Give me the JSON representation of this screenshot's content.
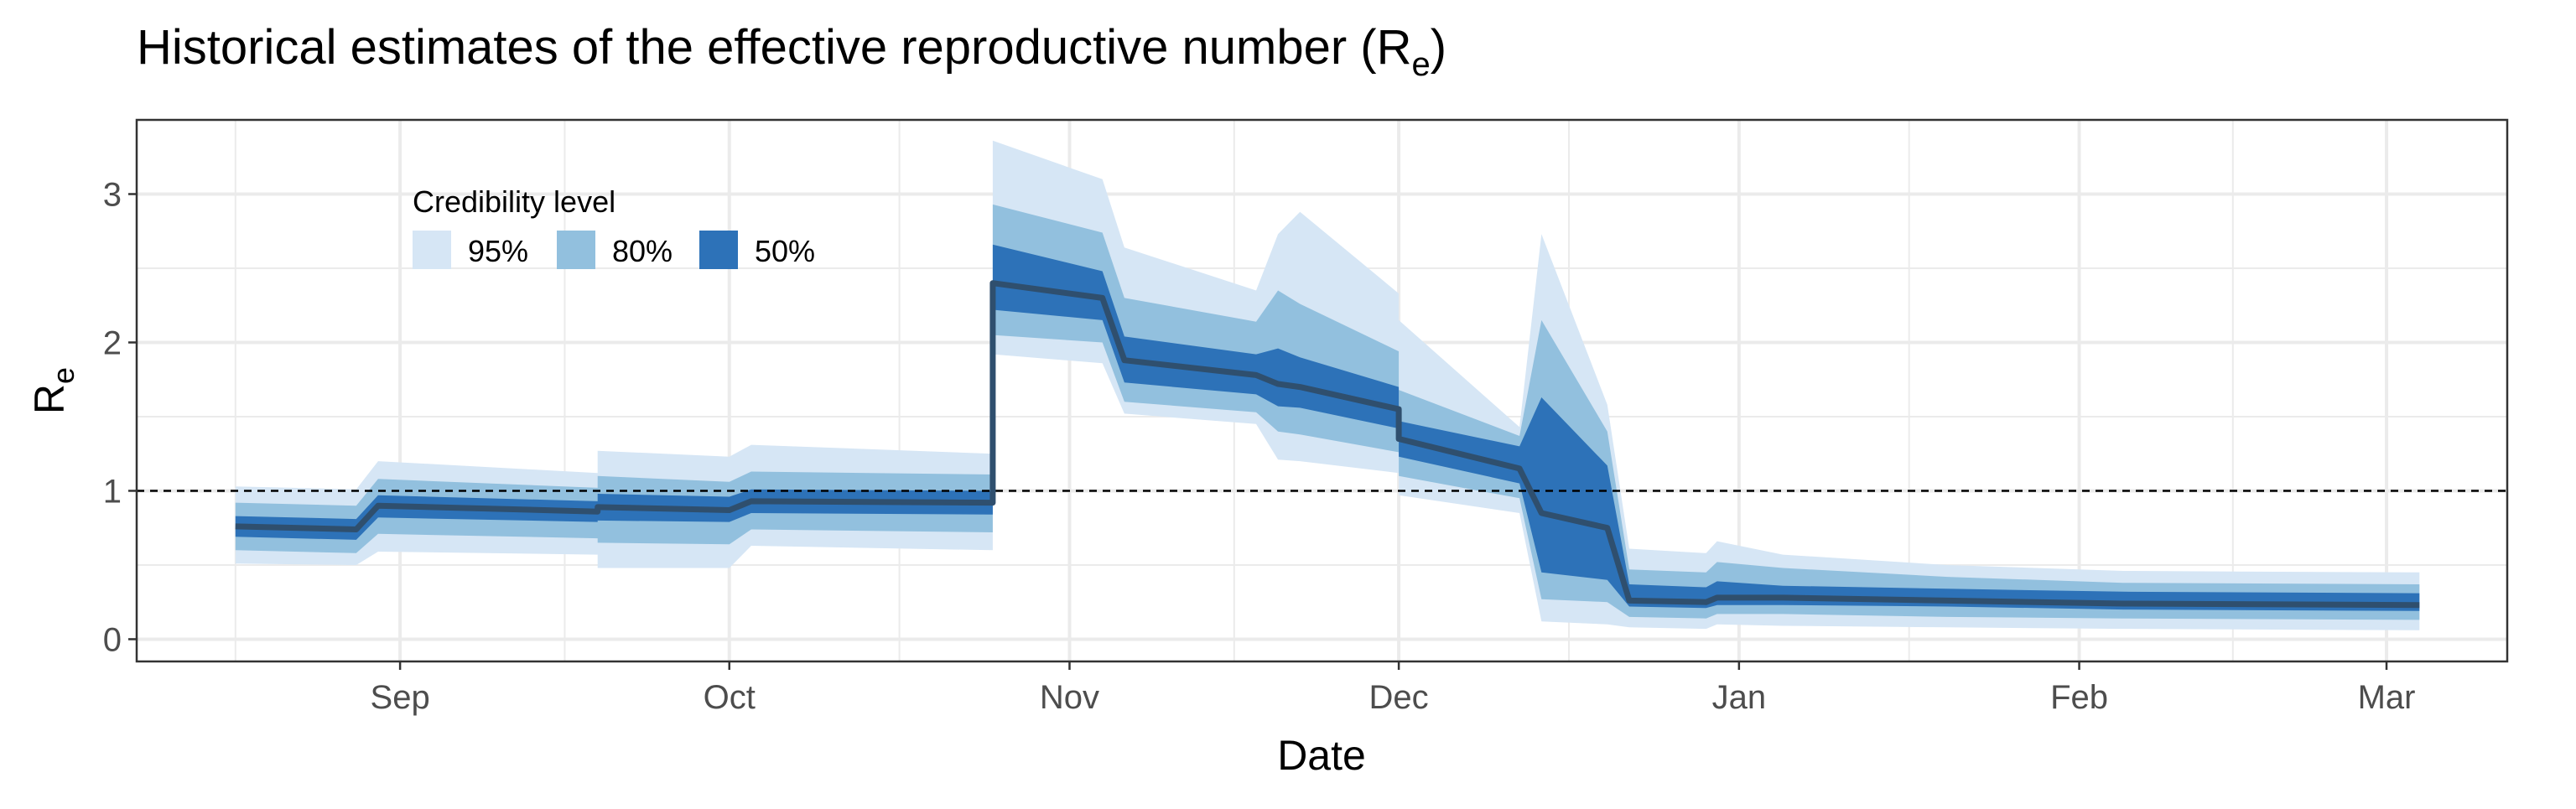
{
  "title": {
    "main": "Historical estimates of the effective reproductive number (R",
    "sub": "e",
    "close": ")"
  },
  "axes": {
    "xlabel": "Date",
    "ylabel_main": "R",
    "ylabel_sub": "e"
  },
  "legend": {
    "title": "Credibility level",
    "items": [
      {
        "label": "95%",
        "color": "#d6e6f5"
      },
      {
        "label": "80%",
        "color": "#92c0de"
      },
      {
        "label": "50%",
        "color": "#2d72b8"
      }
    ]
  },
  "colors": {
    "median_line": "#2f4f6e",
    "reference_line": "#000000",
    "grid": "#ebebeb",
    "panel_border": "#333333"
  },
  "chart_data": {
    "type": "area",
    "x_axis": {
      "type": "date",
      "range": [
        "2020-08-08",
        "2021-03-12"
      ],
      "ticks": [
        {
          "date": "2020-09-01",
          "label": "Sep"
        },
        {
          "date": "2020-10-01",
          "label": "Oct"
        },
        {
          "date": "2020-11-01",
          "label": "Nov"
        },
        {
          "date": "2020-12-01",
          "label": "Dec"
        },
        {
          "date": "2021-01-01",
          "label": "Jan"
        },
        {
          "date": "2021-02-01",
          "label": "Feb"
        },
        {
          "date": "2021-03-01",
          "label": "Mar"
        }
      ]
    },
    "y_axis": {
      "range": [
        -0.15,
        3.5
      ],
      "ticks": [
        0,
        1,
        2,
        3
      ]
    },
    "grid": true,
    "reference_line_y": 1,
    "series": {
      "x": [
        "2020-08-17",
        "2020-08-28",
        "2020-08-30",
        "2020-09-19",
        "2020-09-19",
        "2020-10-01",
        "2020-10-03",
        "2020-10-25",
        "2020-10-25",
        "2020-11-04",
        "2020-11-06",
        "2020-11-18",
        "2020-11-20",
        "2020-11-22",
        "2020-12-01",
        "2020-12-01",
        "2020-12-12",
        "2020-12-14",
        "2020-12-20",
        "2020-12-22",
        "2020-12-29",
        "2020-12-30",
        "2021-01-05",
        "2021-01-20",
        "2021-02-05",
        "2021-03-04"
      ],
      "median": [
        0.76,
        0.74,
        0.9,
        0.86,
        0.89,
        0.87,
        0.93,
        0.92,
        2.4,
        2.3,
        1.88,
        1.78,
        1.72,
        1.7,
        1.55,
        1.35,
        1.15,
        0.85,
        0.75,
        0.26,
        0.25,
        0.28,
        0.28,
        0.26,
        0.24,
        0.23
      ],
      "ci50_low": [
        0.69,
        0.67,
        0.82,
        0.79,
        0.8,
        0.79,
        0.85,
        0.84,
        2.22,
        2.15,
        1.73,
        1.65,
        1.57,
        1.56,
        1.42,
        1.23,
        1.05,
        0.45,
        0.4,
        0.22,
        0.21,
        0.23,
        0.23,
        0.22,
        0.2,
        0.19
      ],
      "ci50_high": [
        0.83,
        0.81,
        0.97,
        0.93,
        0.98,
        0.96,
        1.01,
        1.0,
        2.66,
        2.48,
        2.04,
        1.92,
        1.96,
        1.9,
        1.7,
        1.47,
        1.3,
        1.63,
        1.17,
        0.37,
        0.35,
        0.39,
        0.36,
        0.34,
        0.32,
        0.31
      ],
      "ci80_low": [
        0.6,
        0.58,
        0.71,
        0.68,
        0.65,
        0.64,
        0.74,
        0.72,
        2.05,
        2.0,
        1.6,
        1.53,
        1.4,
        1.38,
        1.26,
        1.1,
        0.95,
        0.27,
        0.25,
        0.15,
        0.14,
        0.17,
        0.17,
        0.15,
        0.14,
        0.13
      ],
      "ci80_high": [
        0.92,
        0.9,
        1.08,
        1.02,
        1.1,
        1.06,
        1.13,
        1.11,
        2.93,
        2.74,
        2.3,
        2.14,
        2.35,
        2.26,
        1.94,
        1.68,
        1.37,
        2.15,
        1.4,
        0.47,
        0.45,
        0.52,
        0.48,
        0.42,
        0.38,
        0.37
      ],
      "ci95_low": [
        0.51,
        0.5,
        0.59,
        0.57,
        0.48,
        0.48,
        0.63,
        0.6,
        1.92,
        1.86,
        1.52,
        1.45,
        1.21,
        1.2,
        1.12,
        0.97,
        0.85,
        0.12,
        0.1,
        0.08,
        0.07,
        0.1,
        0.09,
        0.08,
        0.07,
        0.06
      ],
      "ci95_high": [
        1.03,
        1.01,
        1.2,
        1.12,
        1.27,
        1.23,
        1.31,
        1.25,
        3.36,
        3.1,
        2.64,
        2.35,
        2.73,
        2.88,
        2.33,
        2.15,
        1.43,
        2.73,
        1.58,
        0.61,
        0.58,
        0.66,
        0.57,
        0.5,
        0.46,
        0.45
      ]
    }
  }
}
